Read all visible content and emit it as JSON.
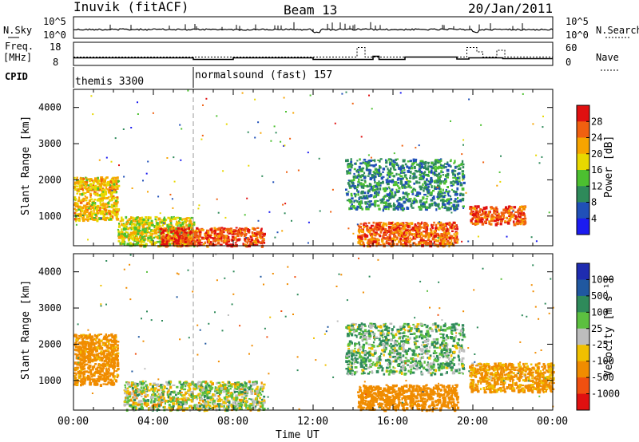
{
  "header": {
    "station": "Inuvik (fitACF)",
    "beam": "Beam 13",
    "date": "20/Jan/2011"
  },
  "strip_labels": {
    "nsky": "N.Sky",
    "nsky_ticks": [
      "10^5",
      "10^0"
    ],
    "nsearch": "N.Search",
    "nsearch_ticks": [
      "10^5",
      "10^0"
    ],
    "freq_top": "Freq.",
    "freq_unit": "[MHz]",
    "freq_ticks": [
      "18",
      "8"
    ],
    "nave": "Nave",
    "nave_ticks": [
      "60",
      "0"
    ],
    "cpid": "CPID"
  },
  "cpid_segments": [
    {
      "label": "themis 3300",
      "start_hour": 0
    },
    {
      "label": "normalsound (fast) 157",
      "start_hour": 6
    }
  ],
  "axes": {
    "ylabel": "Slant Range [km]",
    "xlabel": "Time UT",
    "y_ticks": [
      "1000",
      "2000",
      "3000",
      "4000"
    ],
    "x_ticks": [
      "00:00",
      "04:00",
      "08:00",
      "12:00",
      "16:00",
      "20:00",
      "00:00"
    ]
  },
  "colorbars": {
    "power": {
      "label": "Power [dB]",
      "ticks": [
        "4",
        "8",
        "12",
        "16",
        "20",
        "24",
        "28"
      ],
      "colors": [
        "#1b1bf0",
        "#2050b8",
        "#2e8a5a",
        "#4cc030",
        "#e8d800",
        "#f7a400",
        "#f06010",
        "#e01010"
      ]
    },
    "velocity": {
      "label": "Velocity [m s⁻¹]",
      "ticks": [
        "1000",
        "500",
        "100",
        "25",
        "-25",
        "-100",
        "-500",
        "-1000"
      ],
      "colors": [
        "#1e2cb0",
        "#2058a0",
        "#2e8a5a",
        "#5cc040",
        "#bdbdbd",
        "#f0c000",
        "#f08c00",
        "#f05010",
        "#e01010"
      ]
    }
  },
  "chart_data": [
    {
      "type": "heatmap",
      "title": "Power",
      "xlabel": "Time UT",
      "ylabel": "Slant Range [km]",
      "xlim_hours": [
        0,
        24
      ],
      "ylim_km": [
        180,
        4500
      ],
      "features": [
        {
          "t0": 0.0,
          "t1": 2.2,
          "r0": 900,
          "r1": 2100,
          "value_db": 20
        },
        {
          "t0": 2.2,
          "t1": 6.0,
          "r0": 200,
          "r1": 1000,
          "value_db": 18
        },
        {
          "t0": 4.3,
          "t1": 9.5,
          "r0": 200,
          "r1": 700,
          "value_db": 27
        },
        {
          "t0": 14.2,
          "t1": 19.2,
          "r0": 200,
          "r1": 850,
          "value_db": 26
        },
        {
          "t0": 19.8,
          "t1": 22.6,
          "r0": 800,
          "r1": 1300,
          "value_db": 27
        },
        {
          "t0": 13.6,
          "t1": 19.5,
          "r0": 1200,
          "r1": 2600,
          "value_db": 10
        }
      ]
    },
    {
      "type": "heatmap",
      "title": "Velocity",
      "xlabel": "Time UT",
      "ylabel": "Slant Range [km]",
      "xlim_hours": [
        0,
        24
      ],
      "ylim_km": [
        180,
        4500
      ],
      "features": [
        {
          "t0": 0.0,
          "t1": 2.2,
          "r0": 900,
          "r1": 2300,
          "value_ms": -200
        },
        {
          "t0": 2.5,
          "t1": 9.5,
          "r0": 200,
          "r1": 1000,
          "value_ms": 0
        },
        {
          "t0": 14.2,
          "t1": 19.2,
          "r0": 200,
          "r1": 900,
          "value_ms": -300
        },
        {
          "t0": 19.8,
          "t1": 24.0,
          "r0": 700,
          "r1": 1500,
          "value_ms": -150
        },
        {
          "t0": 13.6,
          "t1": 19.5,
          "r0": 1200,
          "r1": 2600,
          "value_ms": 80
        }
      ]
    }
  ]
}
